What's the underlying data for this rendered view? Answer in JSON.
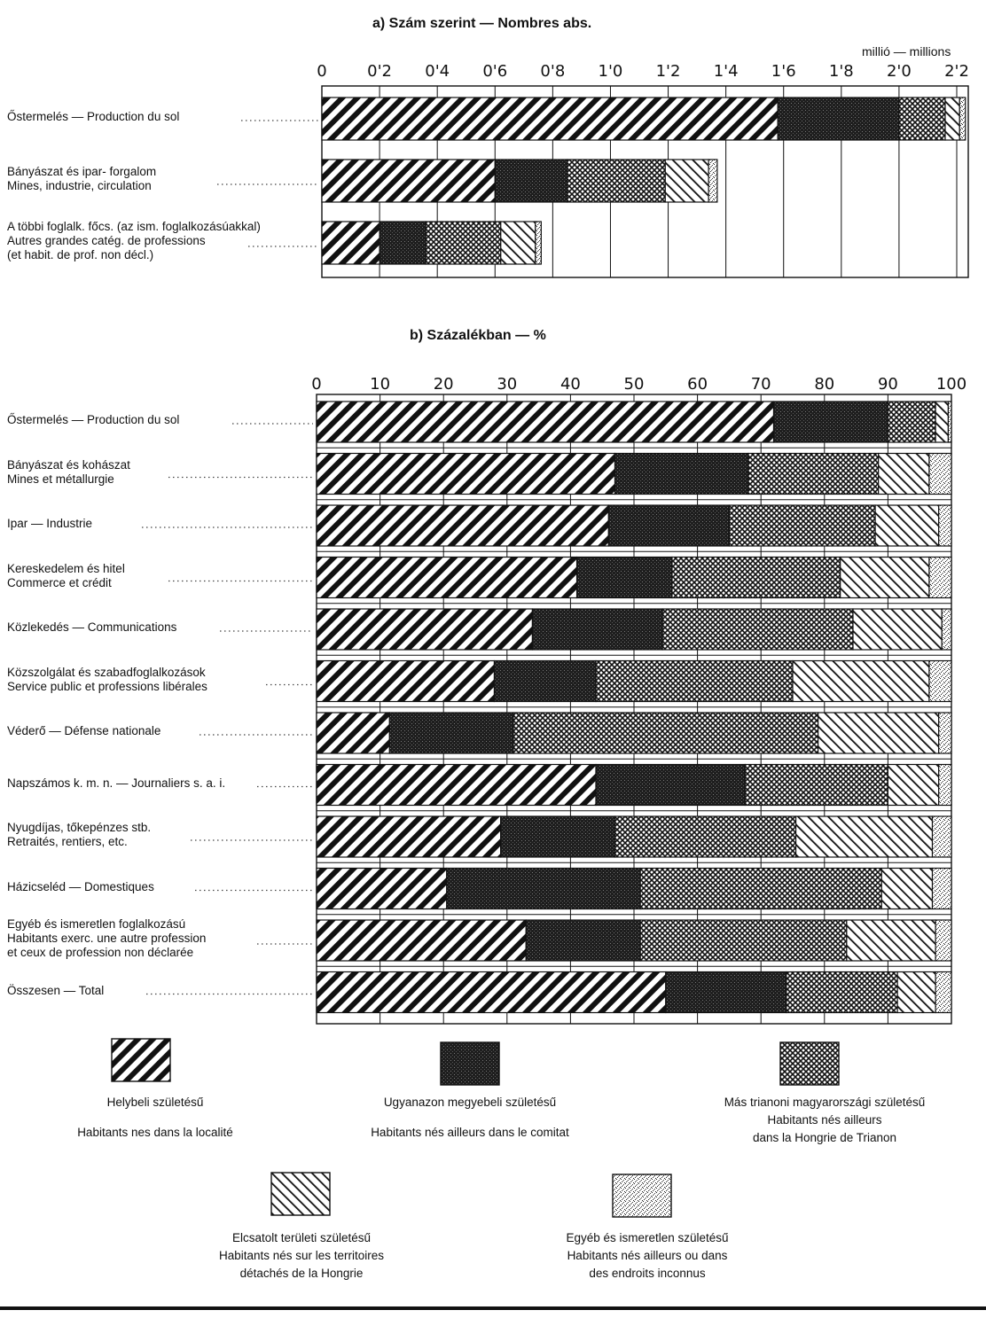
{
  "chart_data": [
    {
      "type": "bar",
      "stacked": true,
      "orientation": "horizontal",
      "title": "a) Szám szerint — Nombres abs.",
      "unit_label": "millió — millions",
      "x_ticks": [
        "0",
        "0'2",
        "0'4",
        "0'6",
        "0'8",
        "1'0",
        "1'2",
        "1'4",
        "1'6",
        "1'8",
        "2'0",
        "2'2"
      ],
      "xlim": [
        0,
        2.2
      ],
      "categories": [
        [
          "Őstermelés — Production du sol"
        ],
        [
          "Bányászat és ipar- forgalom",
          "Mines, industrie, circulation"
        ],
        [
          "A többi foglalk. főcs. (az ism. foglalkozásúakkal)",
          "Autres grandes catég. de professions",
          "(et habit. de prof. non décl.)"
        ]
      ],
      "series_values": [
        [
          1.58,
          0.42,
          0.16,
          0.05,
          0.02
        ],
        [
          0.6,
          0.25,
          0.34,
          0.15,
          0.03
        ],
        [
          0.2,
          0.16,
          0.26,
          0.12,
          0.02
        ]
      ]
    },
    {
      "type": "bar",
      "stacked": true,
      "orientation": "horizontal",
      "title": "b) Százalékban — %",
      "x_ticks": [
        "0",
        "10",
        "20",
        "30",
        "40",
        "50",
        "60",
        "70",
        "80",
        "90",
        "100"
      ],
      "xlim": [
        0,
        100
      ],
      "categories": [
        [
          "Őstermelés — Production du sol"
        ],
        [
          "Bányászat és kohászat",
          "Mines et métallurgie"
        ],
        [
          "Ipar — Industrie"
        ],
        [
          "Kereskedelem és hitel",
          "Commerce et crédit"
        ],
        [
          "Közlekedés — Communications"
        ],
        [
          "Közszolgálat és szabadfoglalkozások",
          "Service public et professions libérales"
        ],
        [
          "Véderő — Défense nationale"
        ],
        [
          "Napszámos k. m. n. — Journaliers s. a. i."
        ],
        [
          "Nyugdíjas, tőkepénzes stb.",
          "Retraités, rentiers, etc."
        ],
        [
          "Házicseléd — Domestiques"
        ],
        [
          "Egyéb és ismeretlen foglalkozású",
          "Habitants exerc. une autre profession",
          "et ceux de profession non déclarée"
        ],
        [
          "Összesen — Total"
        ]
      ],
      "series_values": [
        [
          72,
          18,
          7.5,
          2,
          0.5
        ],
        [
          47,
          21,
          20.5,
          8,
          3.5
        ],
        [
          46,
          19,
          23,
          10,
          2
        ],
        [
          41,
          15,
          26.5,
          14,
          3.5
        ],
        [
          34,
          20.5,
          30,
          14,
          1.5
        ],
        [
          28,
          16,
          31,
          21.5,
          3.5
        ],
        [
          11.5,
          19.5,
          48,
          19,
          2
        ],
        [
          44,
          23.5,
          22.5,
          8,
          2
        ],
        [
          29,
          18,
          28.5,
          21.5,
          3
        ],
        [
          20.5,
          30.5,
          38,
          8,
          3
        ],
        [
          33,
          18,
          32.5,
          14,
          2.5
        ],
        [
          55,
          19,
          17.5,
          6,
          2.5
        ]
      ]
    }
  ],
  "legend": [
    {
      "key": "helybeli",
      "hu": "Helybeli születésű",
      "fr": "Habitants nes dans la localité"
    },
    {
      "key": "megye",
      "hu": "Ugyanazon megyebeli születésű",
      "fr": "Habitants nés ailleurs dans le comitat"
    },
    {
      "key": "trianon",
      "hu": "Más trianoni magyarországi születésű",
      "fr1": "Habitants nés ailleurs",
      "fr2": "dans la Hongrie de Trianon"
    },
    {
      "key": "elcsatolt",
      "hu": "Elcsatolt területi születésű",
      "fr1": "Habitants nés sur les territoires",
      "fr2": "détachés de la Hongrie"
    },
    {
      "key": "egyeb",
      "hu": "Egyéb és ismeretlen születésű",
      "fr1": "Habitants nés ailleurs ou dans",
      "fr2": "des endroits inconnus"
    }
  ],
  "colors": {
    "ink": "#111111",
    "paper": "#ffffff"
  }
}
